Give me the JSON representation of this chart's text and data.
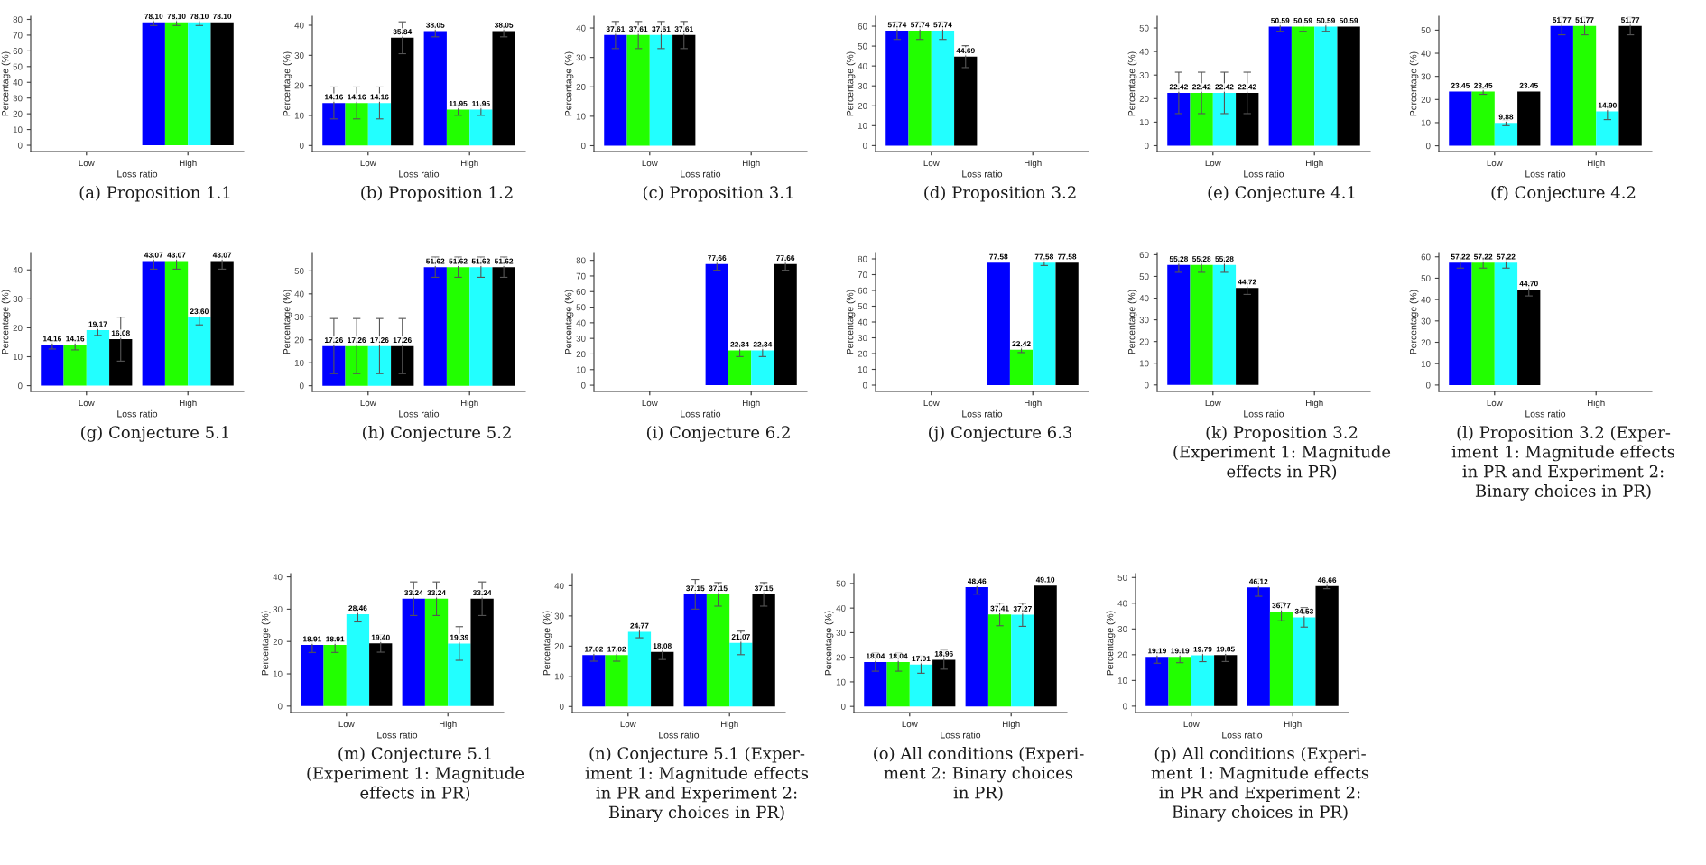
{
  "chart_data": [
    {
      "type": "bar",
      "xlabel": "Loss ratio",
      "ylabel": "Percentage (%)",
      "categories": [
        "Low",
        "High"
      ],
      "ylim": [
        -4,
        82
      ],
      "yticks": [
        0,
        10,
        20,
        30,
        40,
        50,
        60,
        70,
        80
      ],
      "annotations": [
        "(a) Proposition 1.1"
      ],
      "series": [
        {
          "color": "#0000ff",
          "values": [
            null,
            78.1
          ],
          "errors": [
            null,
            2
          ],
          "value_labels": [
            null,
            "78.10"
          ]
        },
        {
          "color": "#22ff00",
          "values": [
            null,
            78.1
          ],
          "errors": [
            null,
            2
          ],
          "value_labels": [
            null,
            "78.10"
          ]
        },
        {
          "color": "#22ffff",
          "values": [
            null,
            78.1
          ],
          "errors": [
            null,
            2
          ],
          "value_labels": [
            null,
            "78.10"
          ]
        },
        {
          "color": "#000000",
          "values": [
            null,
            78.1
          ],
          "errors": [
            null,
            null
          ],
          "value_labels": [
            null,
            "78.10"
          ]
        }
      ]
    },
    {
      "type": "bar",
      "xlabel": "Loss ratio",
      "ylabel": "Percentage (%)",
      "categories": [
        "Low",
        "High"
      ],
      "ylim": [
        -2,
        43
      ],
      "yticks": [
        0,
        10,
        20,
        30,
        40
      ],
      "data_labels": true,
      "annotations": [
        "(b) Proposition 1.2"
      ],
      "series": [
        {
          "color": "#0000ff",
          "values": [
            14.16,
            38.05
          ],
          "errors": [
            5.3,
            1.9
          ]
        },
        {
          "color": "#22ff00",
          "values": [
            14.16,
            11.95
          ],
          "errors": [
            5.3,
            1.9
          ]
        },
        {
          "color": "#22ffff",
          "values": [
            14.16,
            11.95
          ],
          "errors": [
            5.3,
            1.9
          ]
        },
        {
          "color": "#000000",
          "values": [
            35.84,
            38.05
          ],
          "errors": [
            5.3,
            1.9
          ]
        }
      ]
    },
    {
      "type": "bar",
      "xlabel": "Loss ratio",
      "ylabel": "Percentage (%)",
      "categories": [
        "Low",
        "High"
      ],
      "ylim": [
        -2,
        44
      ],
      "yticks": [
        0,
        10,
        20,
        30,
        40
      ],
      "data_labels": true,
      "annotations": [
        "(c) Proposition 3.1"
      ],
      "series": [
        {
          "color": "#0000ff",
          "values": [
            37.61,
            null
          ],
          "errors": [
            4.6,
            null
          ]
        },
        {
          "color": "#22ff00",
          "values": [
            37.61,
            null
          ],
          "errors": [
            4.6,
            null
          ]
        },
        {
          "color": "#22ffff",
          "values": [
            37.61,
            null
          ],
          "errors": [
            4.6,
            null
          ]
        },
        {
          "color": "#000000",
          "values": [
            37.61,
            null
          ],
          "errors": [
            4.6,
            null
          ]
        }
      ]
    },
    {
      "type": "bar",
      "xlabel": "Loss ratio",
      "ylabel": "Percentage (%)",
      "categories": [
        "Low",
        "High"
      ],
      "ylim": [
        -3,
        65
      ],
      "yticks": [
        0,
        10,
        20,
        30,
        40,
        50,
        60
      ],
      "data_labels": true,
      "annotations": [
        "(d) Proposition 3.2"
      ],
      "series": [
        {
          "color": "#0000ff",
          "values": [
            57.74,
            null
          ],
          "errors": [
            4.4,
            null
          ]
        },
        {
          "color": "#22ff00",
          "values": [
            57.74,
            null
          ],
          "errors": [
            4.4,
            null
          ]
        },
        {
          "color": "#22ffff",
          "values": [
            57.74,
            null
          ],
          "errors": [
            4.4,
            null
          ]
        },
        {
          "color": "#000000",
          "values": [
            44.69,
            null
          ],
          "errors": [
            5.5,
            null
          ]
        }
      ]
    },
    {
      "type": "bar",
      "xlabel": "Loss ratio",
      "ylabel": "Percentage (%)",
      "categories": [
        "Low",
        "High"
      ],
      "ylim": [
        -2.5,
        55
      ],
      "yticks": [
        0,
        10,
        20,
        30,
        40,
        50
      ],
      "data_labels": true,
      "annotations": [
        "(e) Conjecture 4.1"
      ],
      "series": [
        {
          "color": "#0000ff",
          "values": [
            22.42,
            50.59
          ],
          "errors": [
            8.8,
            2
          ]
        },
        {
          "color": "#22ff00",
          "values": [
            22.42,
            50.59
          ],
          "errors": [
            8.8,
            2
          ]
        },
        {
          "color": "#22ffff",
          "values": [
            22.42,
            50.59
          ],
          "errors": [
            8.8,
            2
          ]
        },
        {
          "color": "#000000",
          "values": [
            22.42,
            50.59
          ],
          "errors": [
            8.8,
            null
          ]
        }
      ]
    },
    {
      "type": "bar",
      "xlabel": "Loss ratio",
      "ylabel": "Percentage (%)",
      "categories": [
        "Low",
        "High"
      ],
      "ylim": [
        -2.5,
        56
      ],
      "yticks": [
        0,
        10,
        20,
        30,
        40,
        50
      ],
      "data_labels": true,
      "annotations": [
        "(f) Conjecture 4.2"
      ],
      "series": [
        {
          "color": "#0000ff",
          "values": [
            23.45,
            51.77
          ],
          "errors": [
            null,
            3.8
          ]
        },
        {
          "color": "#22ff00",
          "values": [
            23.45,
            51.77
          ],
          "errors": [
            1.2,
            3.8
          ]
        },
        {
          "color": "#22ffff",
          "values": [
            9.88,
            14.9
          ],
          "errors": [
            1.2,
            3.6
          ],
          "value_labels": [
            "9.88",
            "14.90"
          ]
        },
        {
          "color": "#000000",
          "values": [
            23.45,
            51.77
          ],
          "errors": [
            null,
            3.8
          ]
        }
      ]
    },
    {
      "type": "bar",
      "xlabel": "Loss ratio",
      "ylabel": "Percentage (%)",
      "categories": [
        "Low",
        "High"
      ],
      "ylim": [
        -2,
        46
      ],
      "yticks": [
        0,
        10,
        20,
        30,
        40
      ],
      "data_labels": true,
      "annotations": [
        "(g) Conjecture 5.1"
      ],
      "series": [
        {
          "color": "#0000ff",
          "values": [
            14.16,
            43.07
          ],
          "errors": [
            1.5,
            2.8
          ]
        },
        {
          "color": "#22ff00",
          "values": [
            14.16,
            43.07
          ],
          "errors": [
            1.8,
            2.8
          ]
        },
        {
          "color": "#22ffff",
          "values": [
            19.17,
            23.6
          ],
          "errors": [
            1.8,
            2.6
          ],
          "value_labels": [
            "19.17",
            "23.60"
          ]
        },
        {
          "color": "#000000",
          "values": [
            16.08,
            43.07
          ],
          "errors": [
            7.6,
            2.8
          ]
        }
      ]
    },
    {
      "type": "bar",
      "xlabel": "Loss ratio",
      "ylabel": "Percentage (%)",
      "categories": [
        "Low",
        "High"
      ],
      "ylim": [
        -2.5,
        58
      ],
      "yticks": [
        0,
        10,
        20,
        30,
        40,
        50
      ],
      "data_labels": true,
      "annotations": [
        "(h) Conjecture 5.2"
      ],
      "series": [
        {
          "color": "#0000ff",
          "values": [
            17.26,
            51.62
          ],
          "errors": [
            12,
            4.4
          ]
        },
        {
          "color": "#22ff00",
          "values": [
            17.26,
            51.62
          ],
          "errors": [
            12,
            4.4
          ]
        },
        {
          "color": "#22ffff",
          "values": [
            17.26,
            51.62
          ],
          "errors": [
            12,
            4.4
          ]
        },
        {
          "color": "#000000",
          "values": [
            17.26,
            51.62
          ],
          "errors": [
            12,
            4.4
          ]
        }
      ]
    },
    {
      "type": "bar",
      "xlabel": "Loss ratio",
      "ylabel": "Percentage (%)",
      "categories": [
        "Low",
        "High"
      ],
      "ylim": [
        -4,
        85
      ],
      "yticks": [
        0,
        10,
        20,
        30,
        40,
        50,
        60,
        70,
        80
      ],
      "data_labels": true,
      "annotations": [
        "(i) Conjecture 6.2"
      ],
      "series": [
        {
          "color": "#0000ff",
          "values": [
            null,
            77.66
          ],
          "errors": [
            null,
            4
          ]
        },
        {
          "color": "#22ff00",
          "values": [
            null,
            22.34
          ],
          "errors": [
            null,
            4
          ]
        },
        {
          "color": "#22ffff",
          "values": [
            null,
            22.34
          ],
          "errors": [
            null,
            4
          ]
        },
        {
          "color": "#000000",
          "values": [
            null,
            77.66
          ],
          "errors": [
            null,
            4
          ]
        }
      ]
    },
    {
      "type": "bar",
      "xlabel": "Loss ratio",
      "ylabel": "Percentage (%)",
      "categories": [
        "Low",
        "High"
      ],
      "ylim": [
        -4,
        84
      ],
      "yticks": [
        0,
        10,
        20,
        30,
        40,
        50,
        60,
        70,
        80
      ],
      "data_labels": true,
      "annotations": [
        "(j) Conjecture 6.3"
      ],
      "series": [
        {
          "color": "#0000ff",
          "values": [
            null,
            77.58
          ],
          "errors": [
            null,
            null
          ]
        },
        {
          "color": "#22ff00",
          "values": [
            null,
            22.42
          ],
          "errors": [
            null,
            1.8
          ]
        },
        {
          "color": "#22ffff",
          "values": [
            null,
            77.58
          ],
          "errors": [
            null,
            1.8
          ]
        },
        {
          "color": "#000000",
          "values": [
            null,
            77.58
          ],
          "errors": [
            null,
            null
          ]
        }
      ]
    },
    {
      "type": "bar",
      "xlabel": "Loss ratio",
      "ylabel": "Percentage (%)",
      "categories": [
        "Low",
        "High"
      ],
      "ylim": [
        -3,
        61
      ],
      "yticks": [
        0,
        10,
        20,
        30,
        40,
        50,
        60
      ],
      "data_labels": true,
      "annotations": [
        "(k) Proposition 3.2\n(Experiment 1: Magnitude\neffects in PR)"
      ],
      "series": [
        {
          "color": "#0000ff",
          "values": [
            55.28,
            null
          ],
          "errors": [
            3.4,
            null
          ]
        },
        {
          "color": "#22ff00",
          "values": [
            55.28,
            null
          ],
          "errors": [
            3.4,
            null
          ]
        },
        {
          "color": "#22ffff",
          "values": [
            55.28,
            null
          ],
          "errors": [
            3.4,
            null
          ]
        },
        {
          "color": "#000000",
          "values": [
            44.72,
            null
          ],
          "errors": [
            3,
            null
          ]
        }
      ]
    },
    {
      "type": "bar",
      "xlabel": "Loss ratio",
      "ylabel": "Percentage (%)",
      "categories": [
        "Low",
        "High"
      ],
      "ylim": [
        -3,
        62
      ],
      "yticks": [
        0,
        10,
        20,
        30,
        40,
        50,
        60
      ],
      "data_labels": true,
      "annotations": [
        "(l) Proposition 3.2 (Exper-\niment 1: Magnitude effects\nin PR and Experiment 2:\nBinary choices in PR)"
      ],
      "series": [
        {
          "color": "#0000ff",
          "values": [
            57.22,
            null
          ],
          "errors": [
            2.5,
            null
          ]
        },
        {
          "color": "#22ff00",
          "values": [
            57.22,
            null
          ],
          "errors": [
            2.5,
            null
          ]
        },
        {
          "color": "#22ffff",
          "values": [
            57.22,
            null
          ],
          "errors": [
            2.5,
            null
          ]
        },
        {
          "color": "#000000",
          "values": [
            44.7,
            null
          ],
          "errors": [
            3,
            null
          ],
          "value_labels": [
            "44.70",
            null
          ]
        }
      ]
    },
    {
      "type": "bar",
      "xlabel": "Loss ratio",
      "ylabel": "Percentage (%)",
      "categories": [
        "Low",
        "High"
      ],
      "ylim": [
        -2,
        41
      ],
      "yticks": [
        0,
        10,
        20,
        30,
        40
      ],
      "data_labels": true,
      "annotations": [
        "(m) Conjecture 5.1\n(Experiment 1: Magnitude\neffects in PR)"
      ],
      "series": [
        {
          "color": "#0000ff",
          "values": [
            18.91,
            33.24
          ],
          "errors": [
            2.3,
            5.2
          ]
        },
        {
          "color": "#22ff00",
          "values": [
            18.91,
            33.24
          ],
          "errors": [
            2.3,
            5.2
          ]
        },
        {
          "color": "#22ffff",
          "values": [
            28.46,
            19.39
          ],
          "errors": [
            2.4,
            5.2
          ]
        },
        {
          "color": "#000000",
          "values": [
            19.4,
            33.24
          ],
          "errors": [
            2.7,
            5.2
          ],
          "value_labels": [
            "19.40",
            "33.24"
          ]
        }
      ]
    },
    {
      "type": "bar",
      "xlabel": "Loss ratio",
      "ylabel": "Percentage (%)",
      "categories": [
        "Low",
        "High"
      ],
      "ylim": [
        -2,
        44
      ],
      "yticks": [
        0,
        10,
        20,
        30,
        40
      ],
      "data_labels": true,
      "annotations": [
        "(n) Conjecture 5.1 (Exper-\niment 1: Magnitude effects\nin PR and Experiment 2:\nBinary choices in PR)"
      ],
      "series": [
        {
          "color": "#0000ff",
          "values": [
            17.02,
            37.15
          ],
          "errors": [
            2,
            4.9
          ]
        },
        {
          "color": "#22ff00",
          "values": [
            17.02,
            37.15
          ],
          "errors": [
            2,
            3.9
          ]
        },
        {
          "color": "#22ffff",
          "values": [
            24.77,
            21.07
          ],
          "errors": [
            2,
            3.9
          ]
        },
        {
          "color": "#000000",
          "values": [
            18.08,
            37.15
          ],
          "errors": [
            2.5,
            3.9
          ]
        }
      ]
    },
    {
      "type": "bar",
      "xlabel": "Loss ratio",
      "ylabel": "Percentage (%)",
      "categories": [
        "Low",
        "High"
      ],
      "ylim": [
        -2.5,
        54
      ],
      "yticks": [
        0,
        10,
        20,
        30,
        40,
        50
      ],
      "data_labels": true,
      "annotations": [
        "(o) All conditions (Experi-\nment 2: Binary choices\nin PR)"
      ],
      "series": [
        {
          "color": "#0000ff",
          "values": [
            18.04,
            48.46
          ],
          "errors": [
            3.7,
            2.8
          ]
        },
        {
          "color": "#22ff00",
          "values": [
            18.04,
            37.41
          ],
          "errors": [
            3.7,
            4.6
          ]
        },
        {
          "color": "#22ffff",
          "values": [
            17.01,
            37.27
          ],
          "errors": [
            3.5,
            4.7
          ]
        },
        {
          "color": "#000000",
          "values": [
            18.96,
            49.1
          ],
          "errors": [
            3.8,
            null
          ],
          "value_labels": [
            "18.96",
            "49.10"
          ]
        }
      ]
    },
    {
      "type": "bar",
      "xlabel": "Loss ratio",
      "ylabel": "Percentage (%)",
      "categories": [
        "Low",
        "High"
      ],
      "ylim": [
        -2.5,
        51.5
      ],
      "yticks": [
        0,
        10,
        20,
        30,
        40,
        50
      ],
      "data_labels": true,
      "annotations": [
        "(p) All conditions (Experi-\nment 1: Magnitude effects\nin PR and Experiment 2:\nBinary choices in PR)"
      ],
      "series": [
        {
          "color": "#0000ff",
          "values": [
            19.19,
            46.12
          ],
          "errors": [
            2.5,
            3.4
          ]
        },
        {
          "color": "#22ff00",
          "values": [
            19.19,
            36.77
          ],
          "errors": [
            2.3,
            3.6
          ]
        },
        {
          "color": "#22ffff",
          "values": [
            19.79,
            34.53
          ],
          "errors": [
            2.5,
            3.8
          ]
        },
        {
          "color": "#000000",
          "values": [
            19.85,
            46.66
          ],
          "errors": [
            2.5,
            1
          ]
        }
      ]
    }
  ]
}
